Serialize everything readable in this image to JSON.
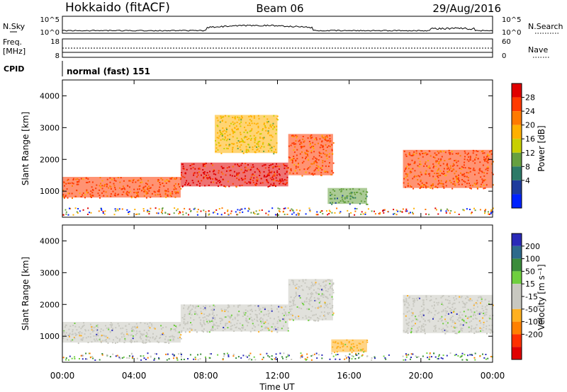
{
  "header": {
    "station": "Hokkaido (fitACF)",
    "beam": "Beam 06",
    "date": "29/Aug/2016"
  },
  "summary": {
    "nsky_label": "N.Sky",
    "nsearch_label": "N.Search",
    "freq_label_line1": "Freq.",
    "freq_label_line2": "[MHz]",
    "nave_label": "Nave",
    "cpid_label": "CPID",
    "cpid_value": "normal (fast) 151",
    "noise_ticks_left": [
      "10^5",
      "10^0"
    ],
    "noise_ticks_right": [
      "10^5",
      "10^0"
    ],
    "freq_ticks": [
      "18",
      "8"
    ],
    "nave_ticks": [
      "60",
      "0"
    ]
  },
  "colorbars": {
    "power": {
      "label": "Power [dB]",
      "ticks": [
        "28",
        "24",
        "20",
        "16",
        "12",
        "8",
        "4"
      ],
      "colors": [
        "#e00000",
        "#ff3a00",
        "#ff7a00",
        "#ffb000",
        "#c8cf00",
        "#66a040",
        "#2d7a68",
        "#1e3c9c",
        "#0022ff"
      ]
    },
    "velocity": {
      "label": "Velocity [m s⁻¹]",
      "ticks": [
        "200",
        "100",
        "50",
        "15",
        "-15",
        "-50",
        "-100",
        "-200"
      ],
      "colors": [
        "#2a2ab8",
        "#2e6a8c",
        "#3b8c3b",
        "#6fcf3f",
        "#c8c8c0",
        "#c8c8c0",
        "#ffb020",
        "#ff8000",
        "#ff3000",
        "#e00000"
      ]
    }
  },
  "chart_data": [
    {
      "type": "heatmap",
      "title": "",
      "quantity": "Power",
      "unit": "dB",
      "ylabel": "Slant Range [km]",
      "xlabel": "",
      "xlim": [
        "00:00",
        "24:00"
      ],
      "ylim": [
        180,
        4500
      ],
      "xticks": [
        "00:00",
        "04:00",
        "08:00",
        "12:00",
        "16:00",
        "20:00",
        "00:00"
      ],
      "yticks": [
        "1000",
        "2000",
        "3000",
        "4000"
      ],
      "features": [
        {
          "t0": 0.0,
          "t1": 6.6,
          "r0": 800,
          "r1": 1450,
          "value": 26
        },
        {
          "t0": 6.6,
          "t1": 12.6,
          "r0": 1150,
          "r1": 1900,
          "value": 28
        },
        {
          "t0": 12.6,
          "t1": 15.1,
          "r0": 1500,
          "r1": 2800,
          "value": 24
        },
        {
          "t0": 8.5,
          "t1": 12.0,
          "r0": 2200,
          "r1": 3400,
          "value": 18
        },
        {
          "t0": 19.0,
          "t1": 24.0,
          "r0": 1100,
          "r1": 2300,
          "value": 26
        },
        {
          "t0": 14.8,
          "t1": 17.0,
          "r0": 600,
          "r1": 1100,
          "value": 12
        }
      ]
    },
    {
      "type": "heatmap",
      "title": "",
      "quantity": "Velocity",
      "unit": "m s-1",
      "ylabel": "Slant Range [km]",
      "xlabel": "Time UT",
      "xlim": [
        "00:00",
        "24:00"
      ],
      "ylim": [
        180,
        4500
      ],
      "xticks": [
        "00:00",
        "04:00",
        "08:00",
        "12:00",
        "16:00",
        "20:00",
        "00:00"
      ],
      "yticks": [
        "1000",
        "2000",
        "3000",
        "4000"
      ],
      "features": [
        {
          "t0": 0.0,
          "t1": 6.6,
          "r0": 800,
          "r1": 1450,
          "value": 0
        },
        {
          "t0": 6.6,
          "t1": 12.6,
          "r0": 1150,
          "r1": 2000,
          "value": 0
        },
        {
          "t0": 12.6,
          "t1": 15.1,
          "r0": 1500,
          "r1": 2800,
          "value": 0
        },
        {
          "t0": 15.0,
          "t1": 17.0,
          "r0": 500,
          "r1": 900,
          "value": -40
        },
        {
          "t0": 19.0,
          "t1": 24.0,
          "r0": 1100,
          "r1": 2300,
          "value": 0
        }
      ]
    }
  ]
}
